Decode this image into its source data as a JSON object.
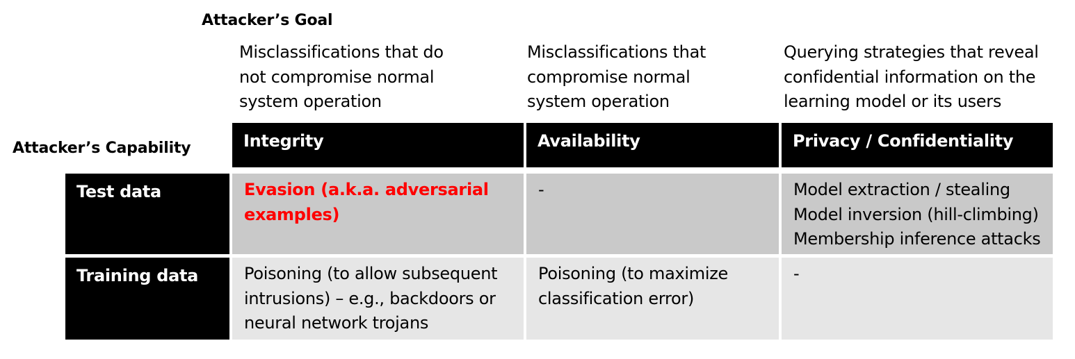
{
  "goal_title": "Attacker’s Goal",
  "capability_title": "Attacker’s Capability",
  "goal_descriptions": [
    [
      "Misclassifications that do",
      "not compromise normal",
      "system operation"
    ],
    [
      "Misclassifications that",
      "compromise normal",
      "system operation"
    ],
    [
      "Querying strategies that reveal",
      "confidential information on the",
      "learning model or its users"
    ]
  ],
  "column_headers": [
    "Integrity",
    "Availability",
    "Privacy / Confidentiality"
  ],
  "rows": [
    {
      "label": "Test data",
      "cells": [
        [
          "Evasion (a.k.a. adversarial",
          "examples)"
        ],
        [
          "-"
        ],
        [
          "Model extraction / stealing",
          "Model inversion (hill-climbing)",
          "Membership inference attacks"
        ]
      ]
    },
    {
      "label": "Training data",
      "cells": [
        [
          "Poisoning (to allow subsequent",
          "intrusions) – e.g., backdoors or",
          "neural network trojans"
        ],
        [
          "Poisoning (to maximize",
          "classification error)"
        ],
        [
          "-"
        ]
      ]
    }
  ],
  "colors": {
    "header_bg": "#000000",
    "row1_bg": "#c9c9c9",
    "row2_bg": "#e6e6e6",
    "highlight_text": "#ff0000"
  }
}
